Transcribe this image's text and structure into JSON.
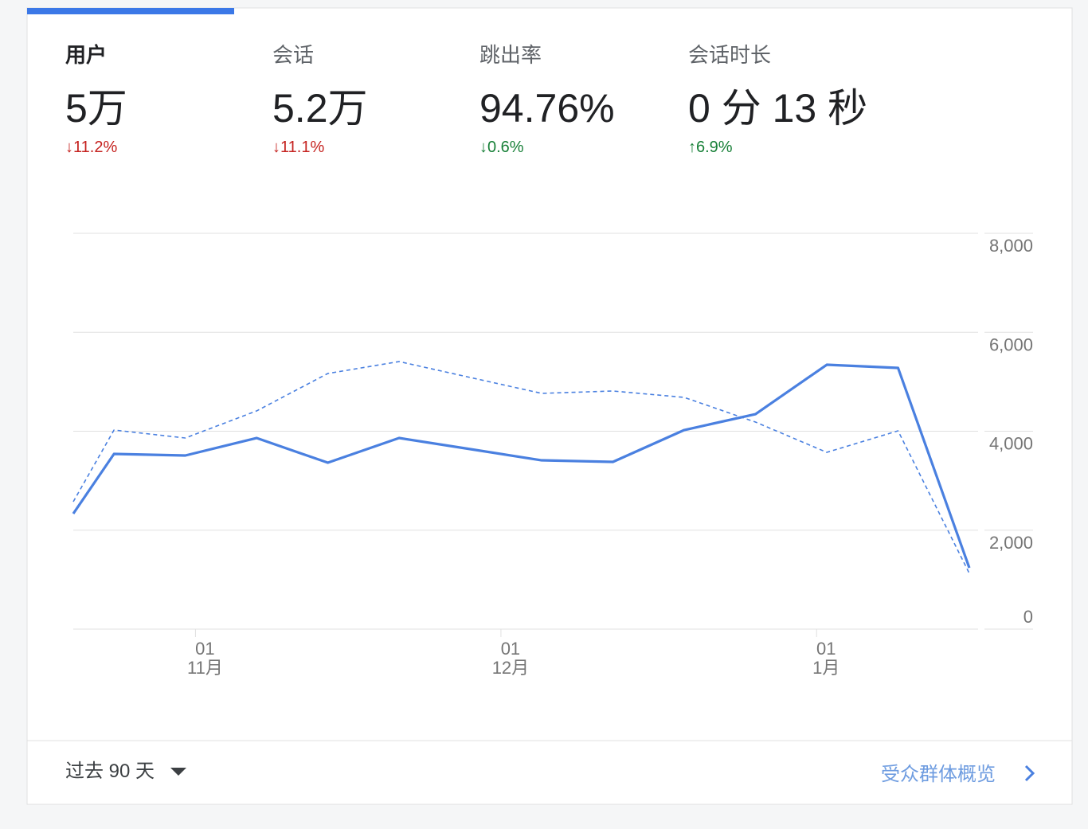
{
  "metrics": [
    {
      "label": "用户",
      "value": "5万",
      "change": "11.2%"
    },
    {
      "label": "会话",
      "value": "5.2万",
      "change": "11.1%"
    },
    {
      "label": "跳出率",
      "value": "94.76%",
      "change": "0.6%"
    },
    {
      "label": "会话时长",
      "value": "0 分 13 秒",
      "change": "6.9%"
    }
  ],
  "chart_data": {
    "type": "line",
    "x": [
      0,
      4,
      11,
      18,
      25,
      32,
      39,
      46,
      53,
      60,
      67,
      74,
      81,
      88
    ],
    "xlim": [
      0,
      88
    ],
    "xticks": [
      {
        "value": 12,
        "label": "01\n11月"
      },
      {
        "value": 42,
        "label": "01\n12月"
      },
      {
        "value": 73,
        "label": "01\n1月"
      }
    ],
    "ylim": [
      0,
      8000
    ],
    "yticks": [
      0,
      {
        "value": 2000,
        "label": "2,000"
      },
      {
        "value": 4000,
        "label": "4,000"
      },
      {
        "value": 6000,
        "label": "6,000"
      },
      {
        "value": 8000,
        "label": "8,000"
      }
    ],
    "grid": true,
    "series": [
      {
        "color": "#4a80e0",
        "dashed": false,
        "values": [
          2334,
          3541,
          3509,
          3863,
          3364,
          3863,
          3638,
          3412,
          3380,
          4024,
          4346,
          5344,
          5280,
          1239
        ]
      },
      {
        "color": "#4a80e0",
        "dashed": true,
        "values": [
          2575,
          4024,
          3863,
          4410,
          5167,
          5408,
          5086,
          4765,
          4813,
          4684,
          4185,
          3573,
          4008,
          1127
        ]
      }
    ]
  },
  "footer": {
    "range": "过去 90 天",
    "link": "受众群体概览"
  }
}
